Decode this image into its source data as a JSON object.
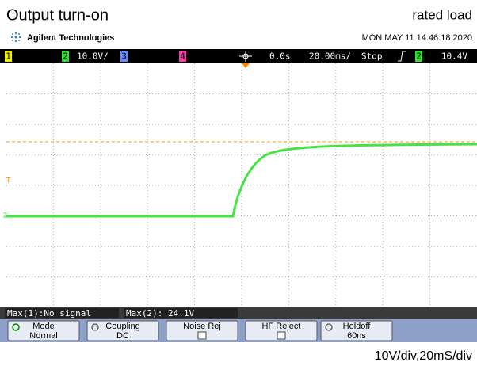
{
  "header": {
    "title": "Output turn-on",
    "note": "rated load",
    "brand": "Agilent Technologies",
    "timestamp": "MON MAY 11 14:46:18 2020"
  },
  "status": {
    "ch1": "1",
    "ch2": "2",
    "ch2_scale": "10.0V/",
    "ch3": "3",
    "ch4": "4",
    "delay": "0.0s",
    "timebase": "20.00ms/",
    "run": "Stop",
    "trig_ch": "2",
    "trig_level": "10.4V"
  },
  "markers": {
    "trigger": "T",
    "ch2": "2"
  },
  "measurements": [
    "Max(1):No signal",
    "Max(2): 24.1V"
  ],
  "softkeys": [
    {
      "label": "Mode",
      "value": "Normal"
    },
    {
      "label": "Coupling",
      "value": "DC"
    },
    {
      "label": "Noise Rej"
    },
    {
      "label": "HF Reject"
    },
    {
      "label": "Holdoff",
      "value": "60ns"
    }
  ],
  "footer": "10V/div,20mS/div"
}
